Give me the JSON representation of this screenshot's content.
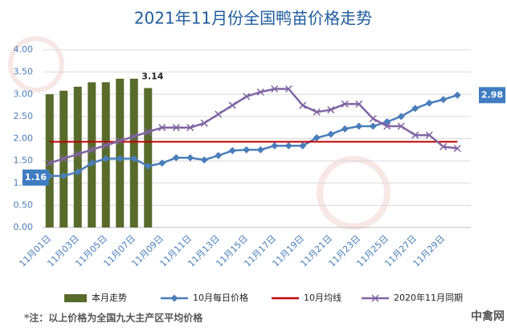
{
  "chart_data": {
    "type": "combo",
    "title": "2021年11月份全国鸭苗价格走势",
    "categories": [
      "11月01日",
      null,
      "11月03日",
      null,
      "11月05日",
      null,
      "11月07日",
      null,
      "11月09日",
      null,
      "11月11日",
      null,
      "11月13日",
      null,
      "11月15日",
      null,
      "11月17日",
      null,
      "11月19日",
      null,
      "11月21日",
      null,
      "11月23日",
      null,
      "11月25日",
      null,
      "11月27日",
      null,
      "11月29日",
      null
    ],
    "ylim": [
      0,
      4
    ],
    "yticks": [
      {
        "value": 0,
        "label": "0.00"
      },
      {
        "value": 0.5,
        "label": "0.50"
      },
      {
        "value": 1,
        "label": "1.00"
      },
      {
        "value": 1.5,
        "label": "1.50"
      },
      {
        "value": 2,
        "label": "2.00"
      },
      {
        "value": 2.5,
        "label": "2.50"
      },
      {
        "value": 3,
        "label": "3.00"
      },
      {
        "value": 3.5,
        "label": "3.50"
      },
      {
        "value": 4,
        "label": "4.00"
      }
    ],
    "grid": true,
    "legend": "bottom",
    "series": [
      {
        "name": "本月走势",
        "type": "bar",
        "color": "#586b2b",
        "values": [
          3.0,
          3.08,
          3.17,
          3.27,
          3.27,
          3.35,
          3.35,
          3.14,
          null,
          null,
          null,
          null,
          null,
          null,
          null,
          null,
          null,
          null,
          null,
          null,
          null,
          null,
          null,
          null,
          null,
          null,
          null,
          null,
          null,
          null
        ],
        "value_labels": [
          null,
          null,
          null,
          null,
          null,
          null,
          null,
          "3.14",
          null,
          null,
          null,
          null,
          null,
          null,
          null,
          null,
          null,
          null,
          null,
          null,
          null,
          null,
          null,
          null,
          null,
          null,
          null,
          null,
          null,
          null
        ]
      },
      {
        "name": "10月每日价格",
        "type": "line",
        "marker": "diamond",
        "color": "#4a7ebb",
        "values": [
          1.16,
          1.16,
          1.25,
          1.45,
          1.55,
          1.55,
          1.55,
          1.38,
          1.45,
          1.57,
          1.57,
          1.52,
          1.62,
          1.73,
          1.75,
          1.75,
          1.84,
          1.84,
          1.84,
          2.02,
          2.1,
          2.22,
          2.28,
          2.28,
          2.38,
          2.5,
          2.68,
          2.8,
          2.88,
          2.98
        ],
        "value_labels": [
          "1.16",
          null,
          null,
          null,
          null,
          null,
          null,
          null,
          null,
          null,
          null,
          null,
          null,
          null,
          null,
          null,
          null,
          null,
          null,
          null,
          null,
          null,
          null,
          null,
          null,
          null,
          null,
          null,
          null,
          "2.98"
        ]
      },
      {
        "name": "10月均线",
        "type": "line",
        "marker": "none",
        "color": "#c00000",
        "values": [
          1.93,
          1.93,
          1.93,
          1.93,
          1.93,
          1.93,
          1.93,
          1.93,
          1.93,
          1.93,
          1.93,
          1.93,
          1.93,
          1.93,
          1.93,
          1.93,
          1.93,
          1.93,
          1.93,
          1.93,
          1.93,
          1.93,
          1.93,
          1.93,
          1.93,
          1.93,
          1.93,
          1.93,
          1.93,
          1.93
        ]
      },
      {
        "name": "2020年11月同期",
        "type": "line",
        "marker": "x",
        "color": "#8064a2",
        "values": [
          1.45,
          1.55,
          1.65,
          1.75,
          1.85,
          1.95,
          2.05,
          2.15,
          2.25,
          2.25,
          2.25,
          2.35,
          2.55,
          2.75,
          2.95,
          3.05,
          3.12,
          3.12,
          2.75,
          2.6,
          2.65,
          2.78,
          2.78,
          2.45,
          2.28,
          2.28,
          2.08,
          2.08,
          1.82,
          1.78
        ]
      }
    ],
    "note": "*注：以上价格为全国九大主产区平均价格",
    "watermark": "中禽网"
  }
}
